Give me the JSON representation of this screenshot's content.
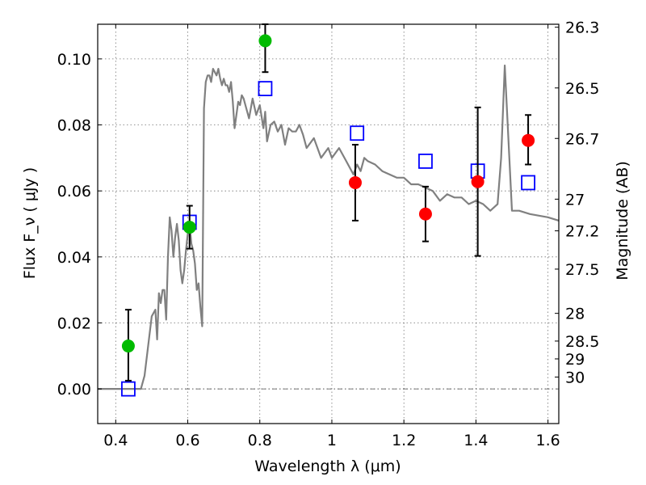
{
  "chart_data": {
    "type": "scatter",
    "title": "",
    "xlabel": "Wavelength  λ (μm)",
    "ylabel": "Flux  F_ν  ( μJy )",
    "ylabel_right": "Magnitude (AB)",
    "xlim": [
      0.35,
      1.63
    ],
    "ylim": [
      -0.0105,
      0.1105
    ],
    "grid": true,
    "zero_line": true,
    "x_ticks": [
      0.4,
      0.6,
      0.8,
      1.0,
      1.2,
      1.4,
      1.6
    ],
    "x_tick_labels": [
      "0.4",
      "0.6",
      "0.8",
      "1",
      "1.2",
      "1.4",
      "1.6"
    ],
    "y_ticks": [
      0.0,
      0.02,
      0.04,
      0.06,
      0.08,
      0.1
    ],
    "y_tick_labels": [
      "0.00",
      "0.02",
      "0.04",
      "0.06",
      "0.08",
      "0.10"
    ],
    "mag_ticks": [
      {
        "label": "26.3",
        "flux": 0.1096
      },
      {
        "label": "26.5",
        "flux": 0.0912
      },
      {
        "label": "26.7",
        "flux": 0.0759
      },
      {
        "label": "27",
        "flux": 0.0575
      },
      {
        "label": "27.2",
        "flux": 0.0479
      },
      {
        "label": "27.5",
        "flux": 0.0363
      },
      {
        "label": "28",
        "flux": 0.0229
      },
      {
        "label": "28.5",
        "flux": 0.0145
      },
      {
        "label": "29",
        "flux": 0.0091
      },
      {
        "label": "30",
        "flux": 0.0036
      }
    ],
    "series": [
      {
        "kind": "line",
        "color": "#808080",
        "x": [
          0.35,
          0.47,
          0.48,
          0.5,
          0.51,
          0.515,
          0.52,
          0.525,
          0.53,
          0.535,
          0.54,
          0.545,
          0.55,
          0.555,
          0.56,
          0.565,
          0.57,
          0.575,
          0.58,
          0.585,
          0.59,
          0.595,
          0.6,
          0.605,
          0.61,
          0.615,
          0.62,
          0.625,
          0.63,
          0.635,
          0.64,
          0.645,
          0.65,
          0.655,
          0.66,
          0.665,
          0.67,
          0.675,
          0.68,
          0.685,
          0.69,
          0.695,
          0.7,
          0.705,
          0.71,
          0.715,
          0.72,
          0.725,
          0.73,
          0.74,
          0.745,
          0.75,
          0.755,
          0.76,
          0.77,
          0.78,
          0.79,
          0.8,
          0.81,
          0.815,
          0.82,
          0.83,
          0.84,
          0.85,
          0.86,
          0.87,
          0.88,
          0.89,
          0.9,
          0.91,
          0.92,
          0.93,
          0.95,
          0.97,
          0.99,
          1.0,
          1.02,
          1.04,
          1.06,
          1.07,
          1.08,
          1.09,
          1.1,
          1.12,
          1.14,
          1.16,
          1.18,
          1.2,
          1.22,
          1.24,
          1.26,
          1.28,
          1.3,
          1.32,
          1.34,
          1.36,
          1.38,
          1.4,
          1.42,
          1.44,
          1.46,
          1.47,
          1.48,
          1.5,
          1.52,
          1.55,
          1.6,
          1.63
        ],
        "y": [
          0.0,
          0.0,
          0.004,
          0.022,
          0.024,
          0.015,
          0.029,
          0.026,
          0.03,
          0.03,
          0.021,
          0.04,
          0.052,
          0.048,
          0.04,
          0.046,
          0.05,
          0.045,
          0.036,
          0.032,
          0.036,
          0.042,
          0.047,
          0.05,
          0.044,
          0.042,
          0.038,
          0.03,
          0.032,
          0.025,
          0.019,
          0.085,
          0.093,
          0.095,
          0.095,
          0.093,
          0.097,
          0.096,
          0.095,
          0.097,
          0.094,
          0.092,
          0.094,
          0.092,
          0.092,
          0.09,
          0.093,
          0.087,
          0.079,
          0.087,
          0.086,
          0.089,
          0.088,
          0.086,
          0.082,
          0.088,
          0.083,
          0.086,
          0.079,
          0.084,
          0.075,
          0.08,
          0.081,
          0.078,
          0.08,
          0.074,
          0.079,
          0.078,
          0.078,
          0.08,
          0.077,
          0.073,
          0.076,
          0.07,
          0.073,
          0.07,
          0.073,
          0.069,
          0.065,
          0.068,
          0.066,
          0.07,
          0.069,
          0.068,
          0.066,
          0.065,
          0.064,
          0.064,
          0.062,
          0.062,
          0.061,
          0.06,
          0.057,
          0.059,
          0.058,
          0.058,
          0.056,
          0.057,
          0.056,
          0.054,
          0.056,
          0.07,
          0.098,
          0.054,
          0.054,
          0.053,
          0.052,
          0.051
        ]
      },
      {
        "kind": "squares",
        "color": "#0000ff",
        "x": [
          0.435,
          0.605,
          0.815,
          1.07,
          1.26,
          1.405,
          1.545
        ],
        "y": [
          0.0,
          0.0505,
          0.091,
          0.0775,
          0.069,
          0.066,
          0.0625
        ]
      },
      {
        "kind": "circles",
        "color": "#00bb00",
        "x": [
          0.435,
          0.605,
          0.815
        ],
        "y": [
          0.013,
          0.049,
          0.1055
        ],
        "err_low": [
          0.0105,
          0.0065,
          0.0095
        ],
        "err_high": [
          0.011,
          0.0065,
          0.005
        ]
      },
      {
        "kind": "circles",
        "color": "#ff0000",
        "x": [
          1.065,
          1.26,
          1.405,
          1.545
        ],
        "y": [
          0.0625,
          0.053,
          0.0628,
          0.0753
        ],
        "err_low": [
          0.0115,
          0.0083,
          0.0225,
          0.0073
        ],
        "err_high": [
          0.0115,
          0.0083,
          0.0225,
          0.0077
        ]
      }
    ]
  }
}
